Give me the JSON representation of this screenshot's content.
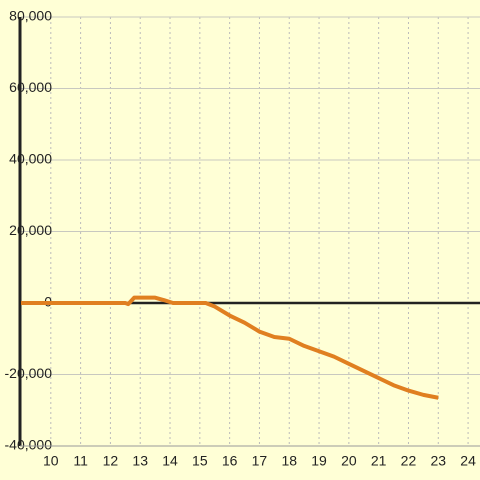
{
  "chart_data": {
    "type": "line",
    "x": [
      9,
      12.5,
      12.6,
      12.8,
      13.5,
      13.8,
      14.1,
      15.2,
      15.5,
      16,
      16.5,
      17,
      17.5,
      18,
      18.5,
      19,
      19.5,
      20,
      20.5,
      21,
      21.5,
      22,
      22.5,
      23
    ],
    "series": [
      {
        "color": "#e07f20",
        "values": [
          0,
          0,
          -300,
          1500,
          1500,
          800,
          0,
          0,
          -1000,
          -3500,
          -5500,
          -8000,
          -9500,
          -10000,
          -12000,
          -13500,
          -15000,
          -17000,
          -19000,
          -21000,
          -23000,
          -24500,
          -25700,
          -26500
        ]
      }
    ],
    "xlim": [
      9,
      24.4
    ],
    "xticks": [
      10,
      11,
      12,
      13,
      14,
      15,
      16,
      17,
      18,
      19,
      20,
      21,
      22,
      23,
      24
    ],
    "ylim": [
      -40000,
      80000
    ],
    "yticks": [
      {
        "value": -40000,
        "label": "-40,000"
      },
      {
        "value": -20000,
        "label": "-20,000"
      },
      0,
      {
        "value": 20000,
        "label": "20,000"
      },
      {
        "value": 40000,
        "label": "40,000"
      },
      {
        "value": 60000,
        "label": "60,000"
      },
      {
        "value": 80000,
        "label": "80,000"
      }
    ],
    "grid": true
  }
}
